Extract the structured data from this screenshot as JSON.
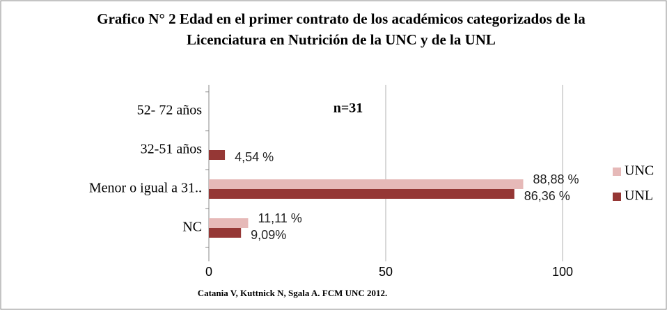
{
  "chart_data": {
    "type": "hbar",
    "title": "Grafico N° 2 Edad en el primer contrato de los académicos categorizados de la Licenciatura en Nutrición de la UNC y de la UNL",
    "subtitle": "n=31",
    "source": "Catania V, Kuttnick N, Sgala A. FCM UNC 2012.",
    "categories": [
      "52- 72 años",
      "32-51 años",
      "Menor o igual a 31..",
      "NC"
    ],
    "series": [
      {
        "name": "UNC",
        "color": "#e6b9b8",
        "values": [
          null,
          null,
          88.88,
          11.11
        ],
        "value_labels": [
          null,
          null,
          "88,88 %",
          "11,11 %"
        ]
      },
      {
        "name": "UNL",
        "color": "#953735",
        "values": [
          null,
          4.54,
          86.36,
          9.09
        ],
        "value_labels": [
          null,
          "4,54 %",
          "86,36 %",
          "9,09%"
        ]
      }
    ],
    "xlim": [
      0,
      100
    ],
    "xticks": [
      0,
      50,
      100
    ],
    "grid": true,
    "legend": "right"
  }
}
